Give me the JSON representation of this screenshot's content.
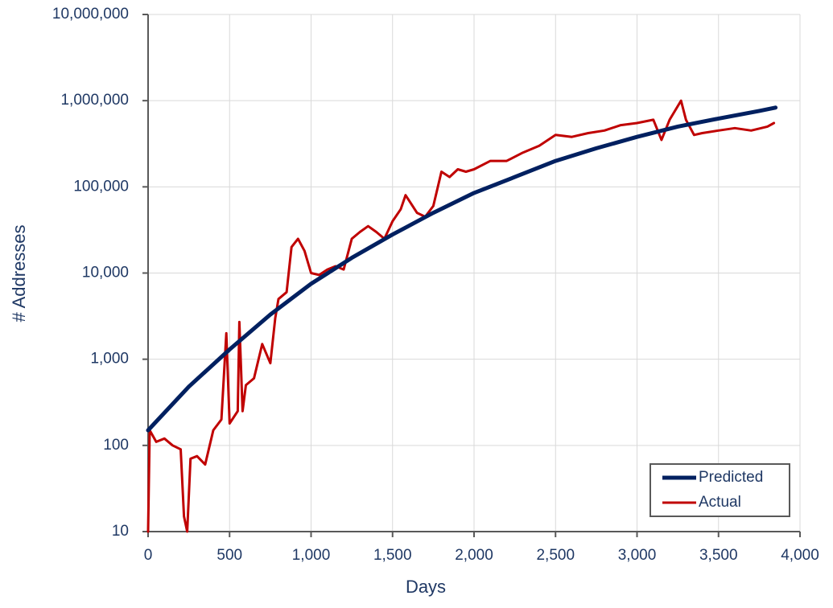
{
  "chart_data": {
    "type": "line",
    "x_label": "Days",
    "y_label": "# Addresses",
    "log_y": true,
    "grid": true,
    "legend": "lower right",
    "xlim": [
      0,
      4000
    ],
    "ylim": [
      10,
      10000000
    ],
    "xticks": [
      0,
      500,
      {
        "value": 1000,
        "label": "1,000"
      },
      {
        "value": 1500,
        "label": "1,500"
      },
      {
        "value": 2000,
        "label": "2,000"
      },
      {
        "value": 2500,
        "label": "2,500"
      },
      {
        "value": 3000,
        "label": "3,000"
      },
      {
        "value": 3500,
        "label": "3,500"
      },
      {
        "value": 4000,
        "label": "4,000"
      }
    ],
    "yticks": [
      10,
      100,
      {
        "value": 1000,
        "label": "1,000"
      },
      {
        "value": 10000,
        "label": "10,000"
      },
      {
        "value": 100000,
        "label": "100,000"
      },
      {
        "value": 1000000,
        "label": "1,000,000"
      },
      {
        "value": 10000000,
        "label": "10,000,000"
      }
    ],
    "series": [
      {
        "name": "Predicted",
        "color": "#002060",
        "width": 5,
        "x": [
          0,
          250,
          500,
          750,
          1000,
          1250,
          1500,
          1750,
          2000,
          2250,
          2500,
          2750,
          3000,
          3250,
          3500,
          3750,
          3850
        ],
        "values": [
          150,
          480,
          1300,
          3300,
          7500,
          15000,
          28000,
          50000,
          85000,
          130000,
          200000,
          280000,
          380000,
          500000,
          620000,
          760000,
          830000
        ]
      },
      {
        "name": "Actual",
        "color": "#c00000",
        "width": 3,
        "x": [
          0,
          10,
          50,
          100,
          150,
          200,
          220,
          240,
          260,
          300,
          350,
          400,
          450,
          480,
          500,
          550,
          560,
          580,
          600,
          650,
          700,
          750,
          780,
          800,
          850,
          880,
          920,
          960,
          1000,
          1050,
          1100,
          1150,
          1200,
          1250,
          1300,
          1350,
          1400,
          1450,
          1500,
          1550,
          1580,
          1600,
          1650,
          1700,
          1750,
          1800,
          1850,
          1900,
          1950,
          2000,
          2100,
          2200,
          2300,
          2400,
          2500,
          2600,
          2700,
          2800,
          2900,
          3000,
          3100,
          3150,
          3200,
          3270,
          3300,
          3350,
          3400,
          3500,
          3600,
          3700,
          3800,
          3840
        ],
        "values": [
          10,
          150,
          110,
          120,
          100,
          90,
          15,
          10,
          70,
          75,
          60,
          150,
          200,
          2000,
          180,
          250,
          2700,
          250,
          500,
          600,
          1500,
          900,
          3000,
          5000,
          6000,
          20000,
          25000,
          18000,
          10000,
          9500,
          11000,
          12000,
          11000,
          25000,
          30000,
          35000,
          30000,
          25000,
          40000,
          55000,
          80000,
          70000,
          50000,
          45000,
          60000,
          150000,
          130000,
          160000,
          150000,
          160000,
          200000,
          200000,
          250000,
          300000,
          400000,
          380000,
          420000,
          450000,
          520000,
          550000,
          600000,
          350000,
          600000,
          1000000,
          600000,
          400000,
          420000,
          450000,
          480000,
          450000,
          500000,
          550000
        ]
      }
    ]
  }
}
